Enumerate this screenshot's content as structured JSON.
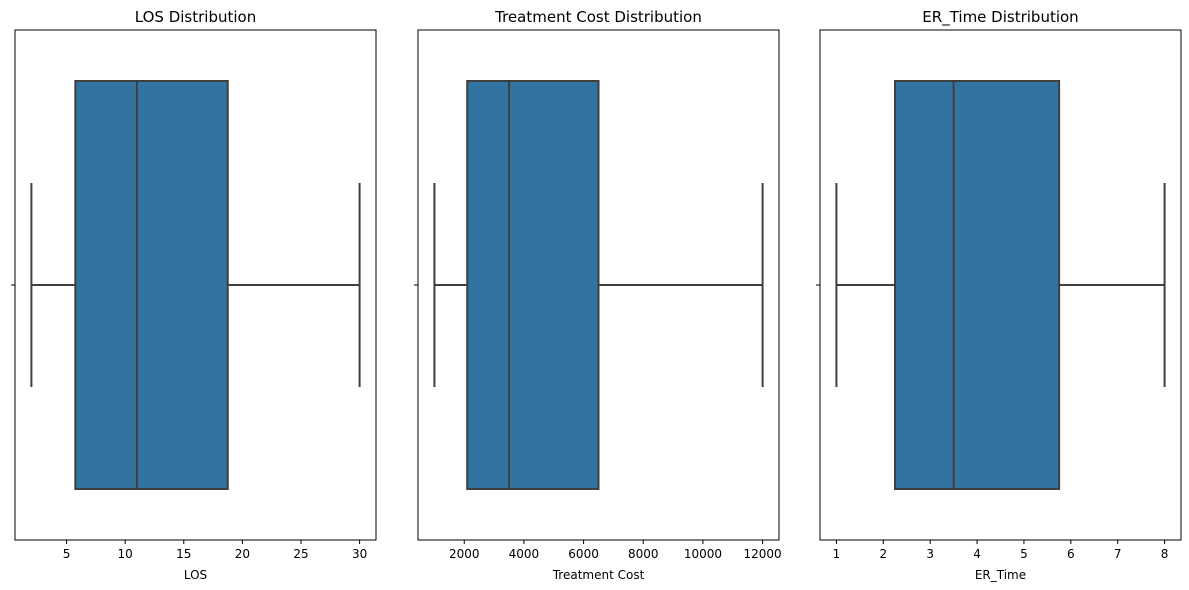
{
  "colors": {
    "box_fill": "#3274a1",
    "line": "#3f3f3f",
    "axes": "#000000",
    "background": "#ffffff"
  },
  "chart_data": [
    {
      "type": "box",
      "title": "LOS Distribution",
      "xlabel": "LOS",
      "xlim": [
        0.6,
        31.4
      ],
      "xticks": [
        5,
        10,
        15,
        20,
        25,
        30
      ],
      "xtick_labels": [
        "5",
        "10",
        "15",
        "20",
        "25",
        "30"
      ],
      "box": {
        "whisker_low": 2,
        "q1": 5.75,
        "median": 11,
        "q3": 18.75,
        "whisker_high": 30
      },
      "grid": false
    },
    {
      "type": "box",
      "title": "Treatment Cost Distribution",
      "xlabel": "Treatment Cost",
      "xlim": [
        450,
        12550
      ],
      "xticks": [
        2000,
        4000,
        6000,
        8000,
        10000,
        12000
      ],
      "xtick_labels": [
        "2000",
        "4000",
        "6000",
        "8000",
        "10000",
        "12000"
      ],
      "box": {
        "whisker_low": 1000,
        "q1": 2100,
        "median": 3500,
        "q3": 6500,
        "whisker_high": 12000
      },
      "grid": false
    },
    {
      "type": "box",
      "title": "ER_Time Distribution",
      "xlabel": "ER_Time",
      "xlim": [
        0.65,
        8.35
      ],
      "xticks": [
        1,
        2,
        3,
        4,
        5,
        6,
        7,
        8
      ],
      "xtick_labels": [
        "1",
        "2",
        "3",
        "4",
        "5",
        "6",
        "7",
        "8"
      ],
      "box": {
        "whisker_low": 1,
        "q1": 2.25,
        "median": 3.5,
        "q3": 5.75,
        "whisker_high": 8
      },
      "grid": false
    }
  ]
}
